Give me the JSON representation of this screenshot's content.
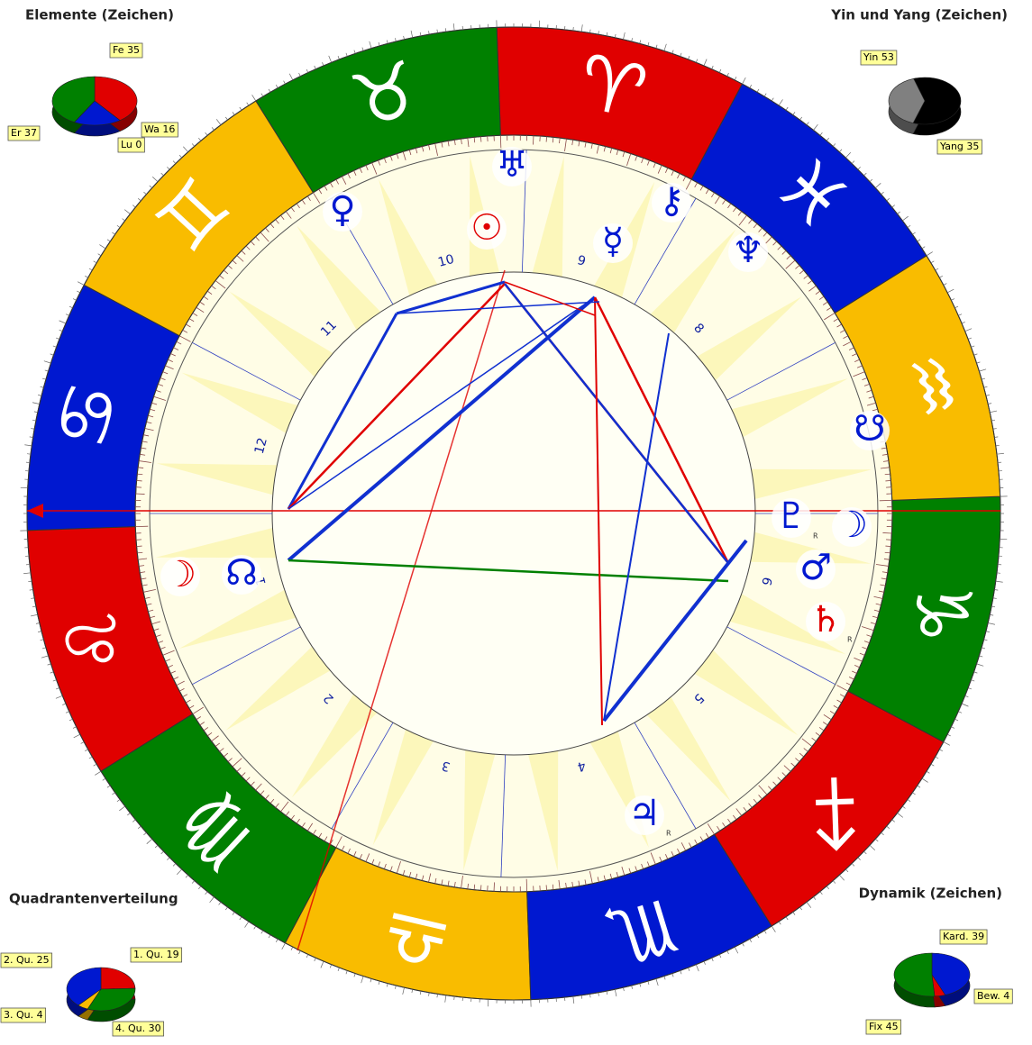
{
  "chart_data": [
    {
      "type": "pie",
      "title": "Elemente (Zeichen)",
      "values": [
        35,
        16,
        0,
        37
      ],
      "value_labels": [
        "Fe 35",
        "Wa 16",
        "Lu 0",
        "Er 37"
      ],
      "colors": [
        "#e00000",
        "#0018d0",
        "#f9bc00",
        "#008000"
      ]
    },
    {
      "type": "pie",
      "title": "Yin und Yang (Zeichen)",
      "values": [
        53,
        35
      ],
      "value_labels": [
        "Yin 53",
        "Yang 35"
      ],
      "colors": [
        "#000000",
        "#808080"
      ]
    },
    {
      "type": "pie",
      "title": "Quadrantenverteilung",
      "values": [
        19,
        25,
        4,
        30
      ],
      "value_labels": [
        "1. Qu. 19",
        "2. Qu. 25",
        "3. Qu. 4",
        "4. Qu. 30"
      ],
      "colors": [
        "#e00000",
        "#008000",
        "#f9bc00",
        "#0018d0"
      ]
    },
    {
      "type": "pie",
      "title": "Dynamik (Zeichen)",
      "values": [
        39,
        4,
        45
      ],
      "value_labels": [
        "Kard. 39",
        "Bew. 4",
        "Fix 45"
      ],
      "colors": [
        "#0018d0",
        "#e00000",
        "#008000"
      ]
    }
  ],
  "wheel": {
    "signs": [
      {
        "glyph": "♈",
        "color": "#e00000"
      },
      {
        "glyph": "♉",
        "color": "#008000"
      },
      {
        "glyph": "♊",
        "color": "#f9bc00"
      },
      {
        "glyph": "♋",
        "color": "#0018d0"
      },
      {
        "glyph": "♌",
        "color": "#e00000"
      },
      {
        "glyph": "♍",
        "color": "#008000"
      },
      {
        "glyph": "♎",
        "color": "#f9bc00"
      },
      {
        "glyph": "♏",
        "color": "#0018d0"
      },
      {
        "glyph": "♐",
        "color": "#e00000"
      },
      {
        "glyph": "♑",
        "color": "#008000"
      },
      {
        "glyph": "♒",
        "color": "#f9bc00"
      },
      {
        "glyph": "♓",
        "color": "#0018d0"
      }
    ],
    "houses": [
      "1",
      "2",
      "3",
      "4",
      "5",
      "6",
      "8",
      "9",
      "10",
      "11",
      "12"
    ],
    "planets": [
      {
        "glyph": "☉",
        "color": "#e00000"
      },
      {
        "glyph": "☿",
        "color": "#0018d0"
      },
      {
        "glyph": "♀",
        "color": "#0018d0"
      },
      {
        "glyph": "♅",
        "color": "#0018d0"
      },
      {
        "glyph": "⚷",
        "color": "#0018d0"
      },
      {
        "glyph": "♆",
        "color": "#0018d0"
      },
      {
        "glyph": "☋",
        "color": "#0018d0"
      },
      {
        "glyph": "♇",
        "color": "#0018d0",
        "retrograde": "R"
      },
      {
        "glyph": "☽",
        "color": "#0018d0"
      },
      {
        "glyph": "♂",
        "color": "#0018d0"
      },
      {
        "glyph": "♄",
        "color": "#e00000",
        "retrograde": "R"
      },
      {
        "glyph": "♃",
        "color": "#0018d0",
        "retrograde": "R"
      },
      {
        "glyph": "☊",
        "color": "#0018d0"
      },
      {
        "glyph": "☽",
        "color": "#e00000"
      }
    ]
  }
}
